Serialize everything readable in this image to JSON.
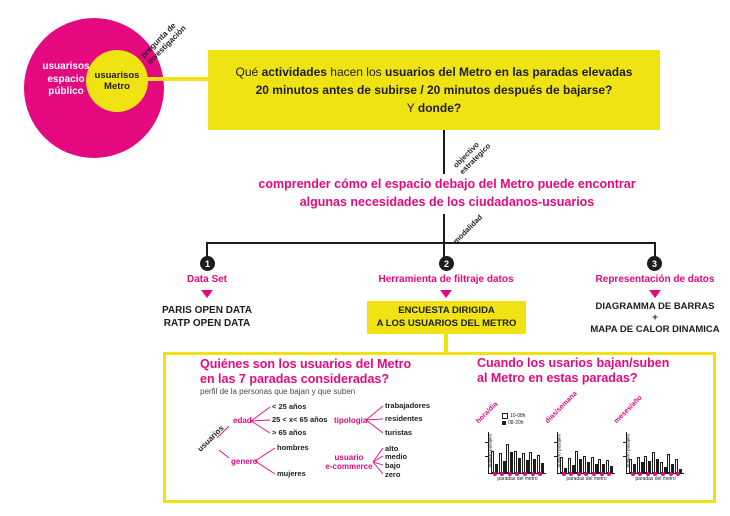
{
  "colors": {
    "magenta": "#e5097f",
    "yellow": "#f0e314",
    "ink": "#1d1d1b"
  },
  "venn": {
    "outer_label": "usuarisos\nespacio\npúblico",
    "inner_label": "usuarisos\nMetro",
    "connector_label": "pregunta de\ninvestigación"
  },
  "question_box": {
    "l1a": "Qué ",
    "l1b": "actividades",
    "l1c": " hacen los ",
    "l1d": "usuarios del Metro en las paradas elevadas",
    "l2": "20 minutos antes de subirse / 20 minutos después de bajarse?",
    "l3a": "Y ",
    "l3b": "donde?"
  },
  "objective": {
    "connector_label": "objectivo\nestrategico",
    "statement": "comprender cómo el espacio debajo del Metro puede encontrar\nalgunas necesidades de los ciudadanos-usuarios"
  },
  "modality": {
    "connector_label": "modalidad"
  },
  "branches": [
    {
      "number": "1",
      "title": "Data Set",
      "content": "PARIS OPEN DATA\nRATP OPEN DATA"
    },
    {
      "number": "2",
      "title": "Herramienta de filtraje datos",
      "box": "ENCUESTA DIRIGIDA\nA LOS USUARIOS DEL METRO"
    },
    {
      "number": "3",
      "title": "Representación de datos",
      "content": "DIAGRAMMA DE BARRAS\n+\nMAPA DE CALOR DINAMICA"
    }
  ],
  "panel": {
    "left": {
      "title": "Quiénes son los usuarios del Metro\nen las 7 paradas consideradas?",
      "subtitle": "perfil de la personas que bajan y que suben",
      "root": "usuarios",
      "groups": [
        {
          "label": "edad",
          "options": [
            "< 25 años",
            "25 < x< 65 años",
            "> 65 años"
          ]
        },
        {
          "label": "genero",
          "options": [
            "hombres",
            "mujeres"
          ]
        },
        {
          "label": "tipologia",
          "options": [
            "trabajadores",
            "residentes",
            "turistas"
          ]
        },
        {
          "label": "usuario\ne-commerce",
          "options": [
            "alto",
            "medio",
            "bajo",
            "zero"
          ]
        }
      ]
    },
    "right": {
      "title": "Cuando los usarios bajan/suben\nal Metro en estas paradas?"
    }
  },
  "chart_data": [
    {
      "type": "bar",
      "title": "hora/dia",
      "xlabel": "paradas del metro",
      "ylabel": "numero pasajero",
      "legend_position": "top-left",
      "categories": [
        "",
        "",
        "",
        "",
        "",
        "",
        ""
      ],
      "series": [
        {
          "name": "10-08h",
          "style": "outline",
          "values": [
            60,
            55,
            80,
            62,
            55,
            58,
            50
          ]
        },
        {
          "name": "08-20h",
          "style": "solid",
          "values": [
            24,
            32,
            58,
            42,
            36,
            38,
            28
          ]
        }
      ],
      "ylim": [
        0,
        100
      ],
      "grid": false
    },
    {
      "type": "bar",
      "title": "dias/semana",
      "xlabel": "paradas del metro",
      "ylabel": "numero pasajero",
      "categories": [
        "",
        "",
        "",
        "",
        "",
        "",
        ""
      ],
      "series": [
        {
          "name": "10-08h",
          "style": "outline",
          "values": [
            44,
            42,
            60,
            48,
            44,
            40,
            36
          ]
        },
        {
          "name": "08-20h",
          "style": "solid",
          "values": [
            14,
            22,
            40,
            30,
            24,
            26,
            20
          ]
        }
      ],
      "ylim": [
        0,
        100
      ],
      "grid": false
    },
    {
      "type": "bar",
      "title": "meses/año",
      "xlabel": "paradas del metro",
      "ylabel": "numero pasajero",
      "categories": [
        "",
        "",
        "",
        "",
        "",
        "",
        ""
      ],
      "series": [
        {
          "name": "10-08h",
          "style": "outline",
          "values": [
            40,
            44,
            48,
            58,
            30,
            52,
            40
          ]
        },
        {
          "name": "08-20h",
          "style": "solid",
          "values": [
            26,
            30,
            34,
            40,
            18,
            24,
            10
          ]
        }
      ],
      "ylim": [
        0,
        100
      ],
      "grid": false
    }
  ]
}
